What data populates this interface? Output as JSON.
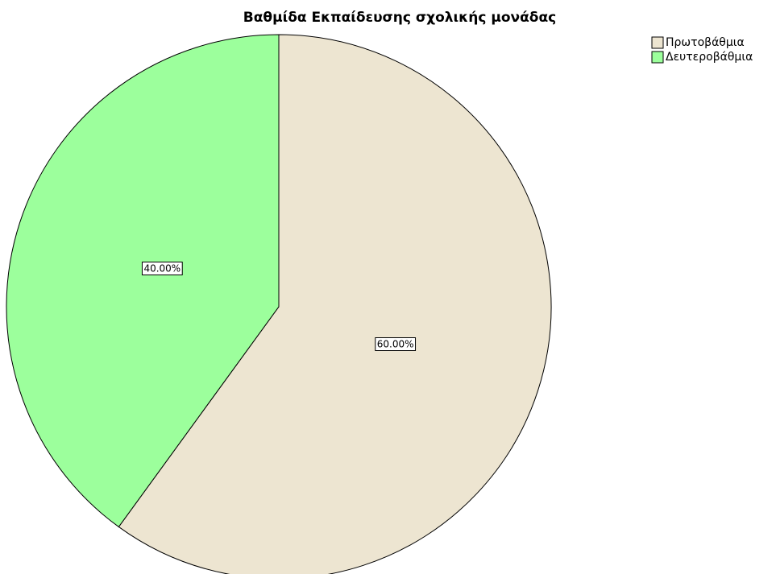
{
  "chart_data": {
    "type": "pie",
    "title": "Βαθμίδα Εκπαίδευσης σχολικής μονάδας",
    "categories": [
      "Πρωτοβάθμια",
      "Δευτεροβάθμια"
    ],
    "values": [
      60,
      40
    ],
    "value_labels": [
      "60.00%",
      "40.00%"
    ],
    "colors": [
      "#ede5d1",
      "#9cff9c"
    ],
    "legend": "top-right"
  }
}
